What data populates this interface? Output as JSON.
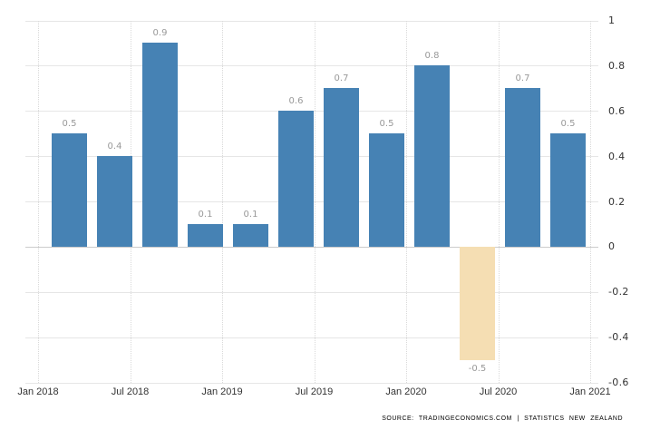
{
  "chart_data": {
    "type": "bar",
    "title": "",
    "categories": [
      "2018-Q1",
      "2018-Q2",
      "2018-Q3",
      "2018-Q4",
      "2019-Q1",
      "2019-Q2",
      "2019-Q3",
      "2019-Q4",
      "2020-Q1",
      "2020-Q2",
      "2020-Q3",
      "2020-Q4"
    ],
    "values": [
      0.5,
      0.4,
      0.9,
      0.1,
      0.1,
      0.6,
      0.7,
      0.5,
      0.8,
      -0.5,
      0.7,
      0.5
    ],
    "data_labels": [
      "0.5",
      "0.4",
      "0.9",
      "0.1",
      "0.1",
      "0.6",
      "0.7",
      "0.5",
      "0.8",
      "-0.5",
      "0.7",
      "0.5"
    ],
    "x_tick_labels": [
      "Jan 2018",
      "Jul 2018",
      "Jan 2019",
      "Jul 2019",
      "Jan 2020",
      "Jul 2020",
      "Jan 2021"
    ],
    "y_tick_labels": [
      "1",
      "0.8",
      "0.6",
      "0.4",
      "0.2",
      "0",
      "-0.2",
      "-0.4",
      "-0.6"
    ],
    "y_tick_values": [
      1,
      0.8,
      0.6,
      0.4,
      0.2,
      0,
      -0.2,
      -0.4,
      -0.6
    ],
    "ylim": [
      -0.6,
      1.0
    ],
    "grid": true,
    "legend": "none",
    "y_axis_position": "right",
    "colors": {
      "positive_bar": "#4682b4",
      "negative_bar": "#f5deb3",
      "data_label": "#999999",
      "axis_label": "#333333",
      "gridline": "#e6e6e6",
      "zero_line": "#cccccc",
      "source_text": "#999999",
      "background": "#ffffff"
    }
  },
  "footer": {
    "source_text": "SOURCE: TRADINGECONOMICS.COM | STATISTICS NEW ZEALAND"
  }
}
